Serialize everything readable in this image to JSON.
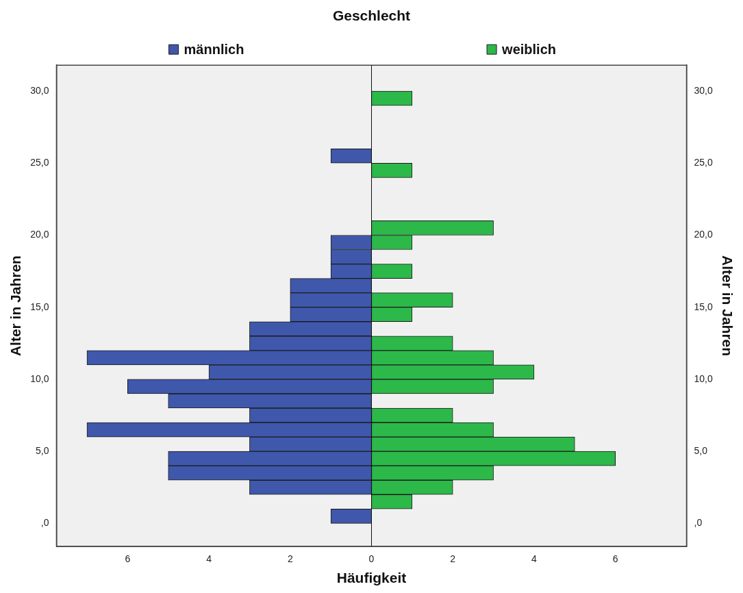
{
  "chart_data": {
    "type": "histogram",
    "orientation": "horizontal",
    "title": "Geschlecht",
    "xlabel": "Häufigkeit",
    "ylabel": "Alter in Jahren",
    "y2label": "Alter in Jahren",
    "bins": [
      0,
      1,
      2,
      3,
      4,
      5,
      6,
      7,
      8,
      9,
      10,
      11,
      12,
      13,
      14,
      15,
      16,
      17,
      18,
      19,
      20,
      21,
      22,
      23,
      24,
      25,
      26,
      27,
      28,
      29,
      30
    ],
    "series": [
      {
        "name": "männlich",
        "color": "#3f58ab",
        "values": [
          -1,
          0,
          -3,
          -5,
          -5,
          -3,
          -7,
          -3,
          -5,
          -6,
          -4,
          -7,
          -3,
          -3,
          -2,
          -2,
          -2,
          -1,
          -1,
          -1,
          0,
          0,
          0,
          0,
          0,
          -1,
          0,
          0,
          0,
          0
        ]
      },
      {
        "name": "weiblich",
        "color": "#2db84a",
        "values": [
          0,
          1,
          2,
          3,
          6,
          5,
          3,
          2,
          0,
          3,
          4,
          3,
          2,
          0,
          1,
          2,
          0,
          1,
          0,
          1,
          3,
          0,
          0,
          0,
          1,
          0,
          0,
          0,
          0,
          1
        ]
      }
    ],
    "xlim": [
      -7.75,
      7.75
    ],
    "xticks": [
      {
        "value": -6,
        "label": "6"
      },
      {
        "value": -4,
        "label": "4"
      },
      {
        "value": -2,
        "label": "2"
      },
      0,
      2,
      4,
      6
    ],
    "ylim": [
      -1.6,
      31.8
    ],
    "yticks": [
      {
        "value": 0,
        "label": ",0"
      },
      {
        "value": 5,
        "label": "5,0"
      },
      {
        "value": 10,
        "label": "10,0"
      },
      {
        "value": 15,
        "label": "15,0"
      },
      {
        "value": 20,
        "label": "20,0"
      },
      {
        "value": 25,
        "label": "25,0"
      },
      {
        "value": 30,
        "label": "30,0"
      }
    ],
    "y2lim": [
      -1.6,
      31.8
    ],
    "y2ticks": [
      {
        "value": 0,
        "label": ",0"
      },
      {
        "value": 5,
        "label": "5,0"
      },
      {
        "value": 10,
        "label": "10,0"
      },
      {
        "value": 15,
        "label": "15,0"
      },
      {
        "value": 20,
        "label": "20,0"
      },
      {
        "value": 25,
        "label": "25,0"
      },
      {
        "value": 30,
        "label": "30,0"
      }
    ],
    "legend": "top"
  }
}
